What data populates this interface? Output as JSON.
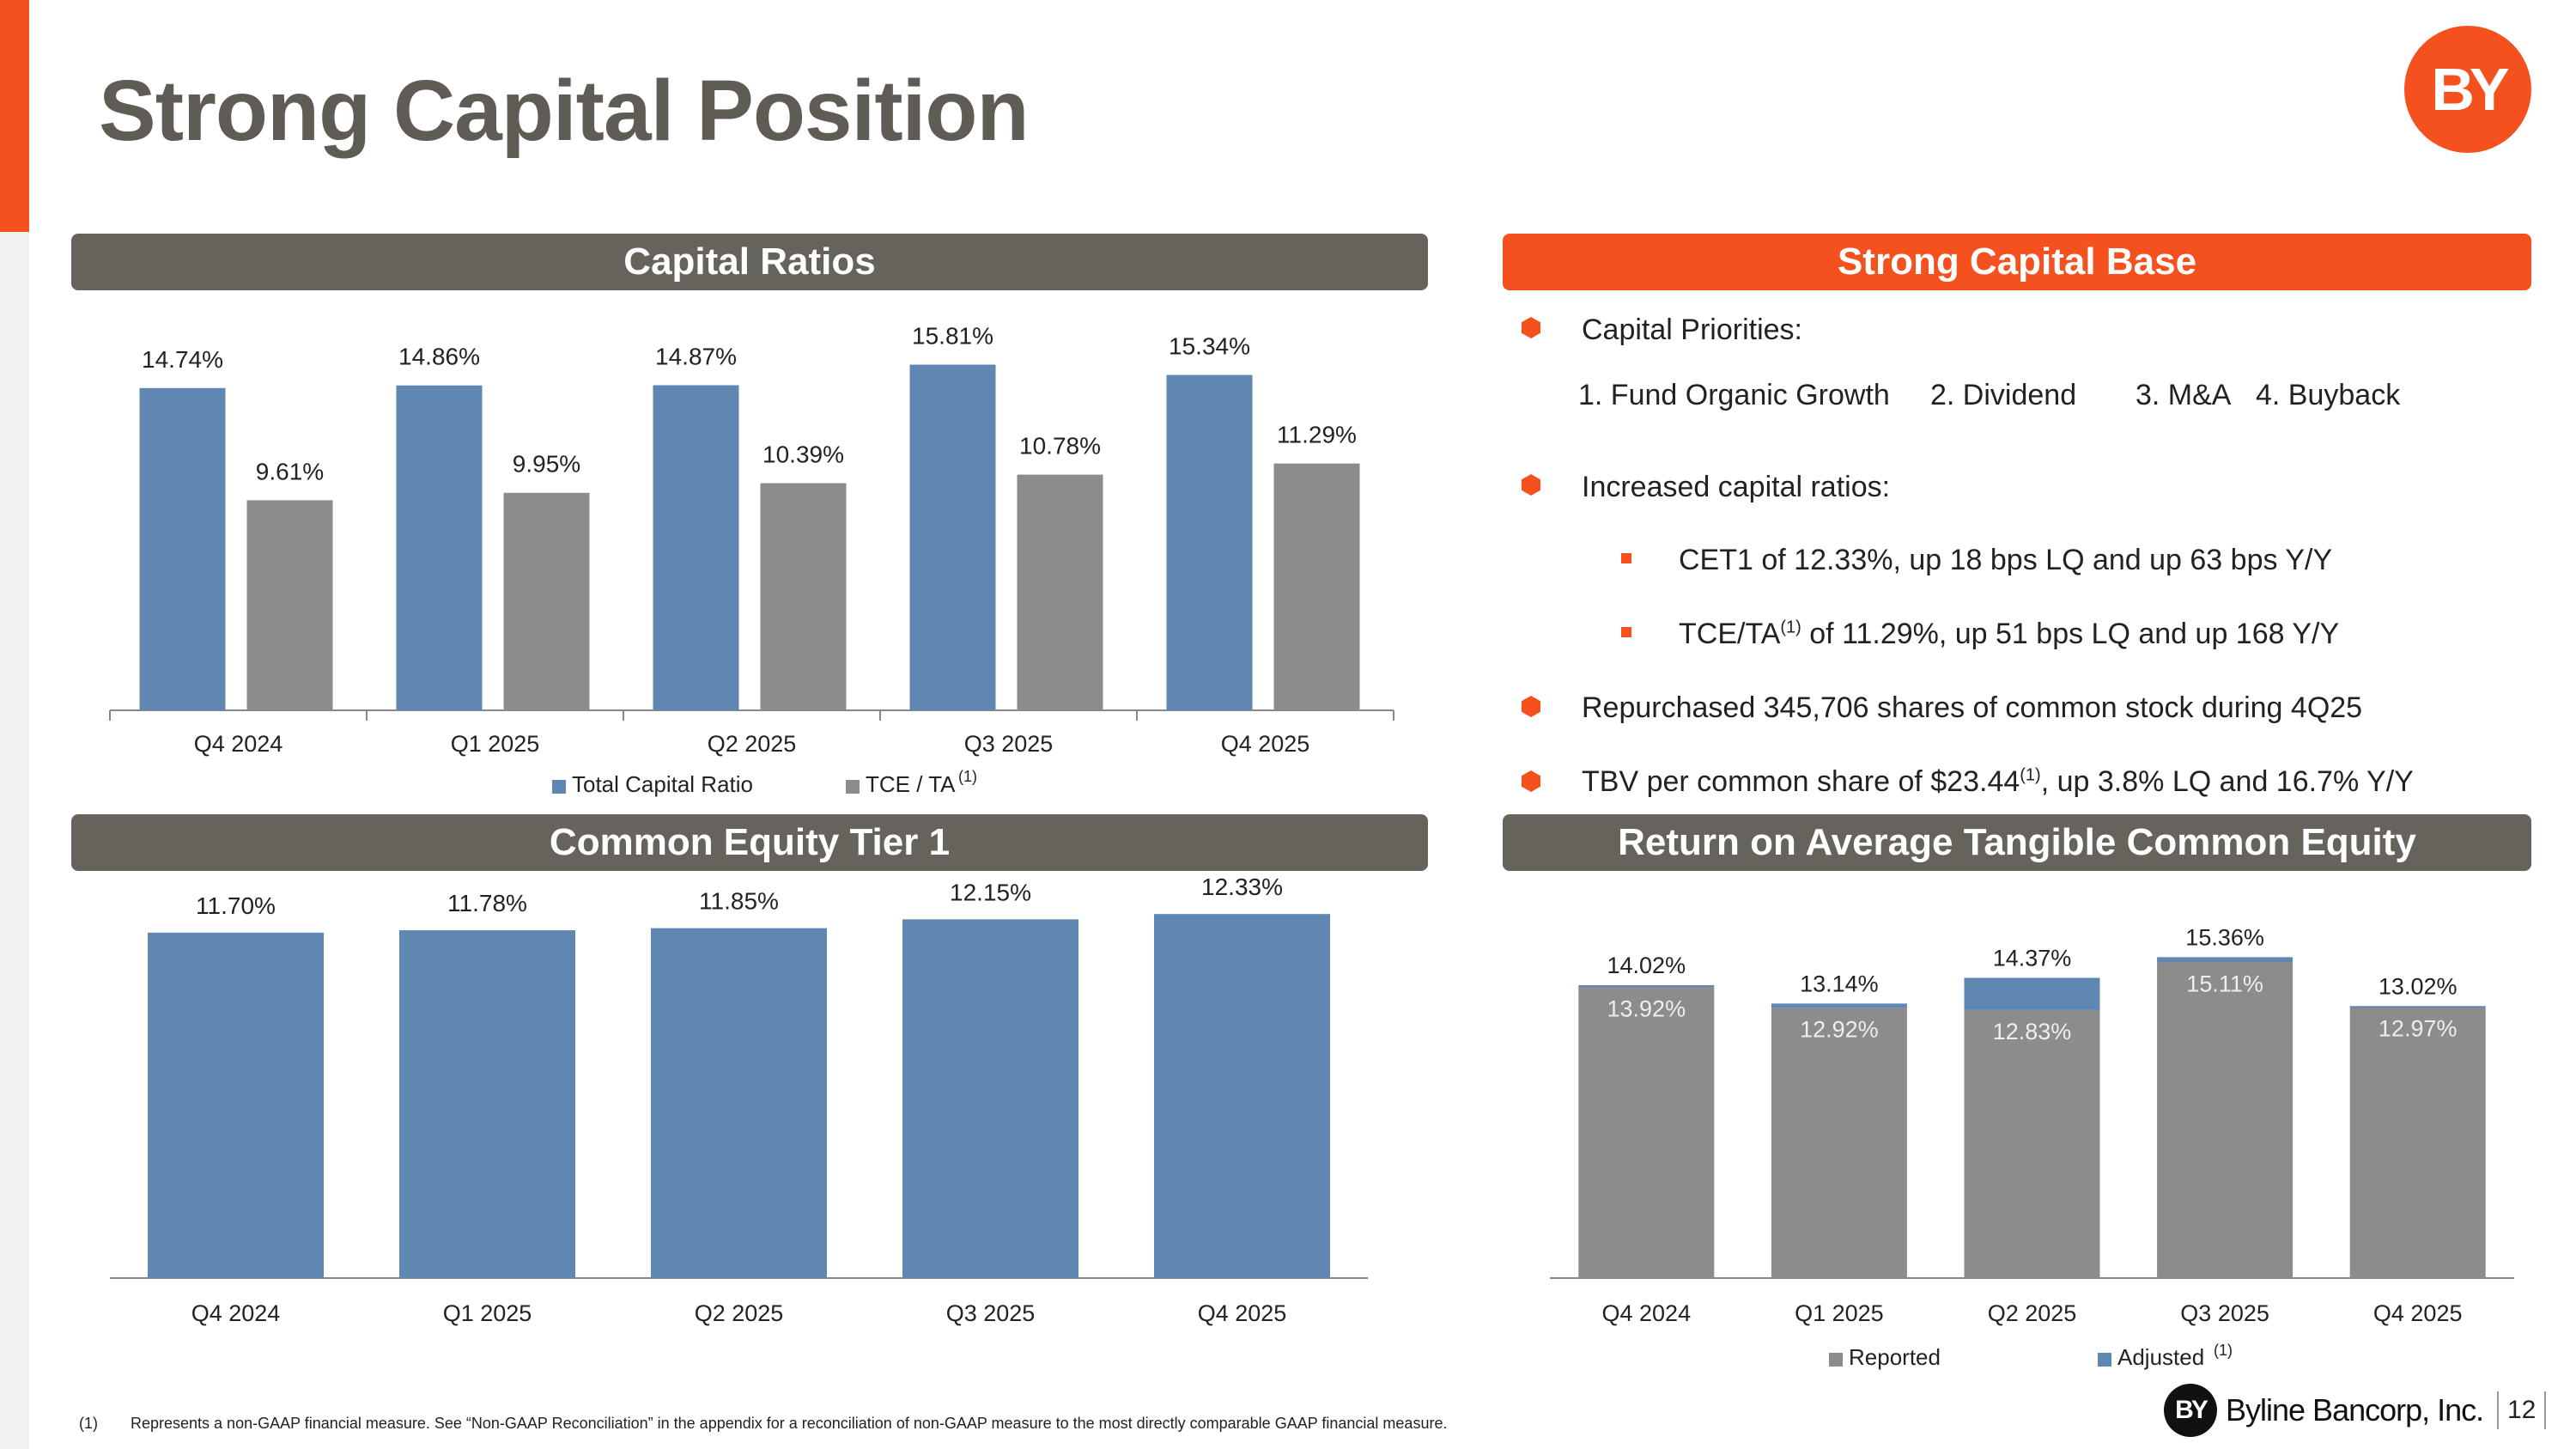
{
  "title": "Strong Capital Position",
  "colors": {
    "accent": "#f4511e",
    "blue": "#5f87b2",
    "gray_bar": "#8c8c8c",
    "header_gray": "#66625c"
  },
  "sections": {
    "capital_ratios": "Capital Ratios",
    "strong_capital_base": "Strong Capital Base",
    "cet1": "Common Equity Tier 1",
    "rotce": "Return on Average Tangible Common Equity"
  },
  "bullets": {
    "priorities_title": "Capital Priorities:",
    "priorities": [
      "1. Fund Organic Growth",
      "2. Dividend",
      "3. M&A",
      "4. Buyback"
    ],
    "increased": "Increased capital ratios:",
    "cet1_item": "CET1 of 12.33%, up 18 bps LQ and up 63 bps Y/Y",
    "tce_pre": "TCE/TA",
    "tce_sup": "(1)",
    "tce_post": " of 11.29%, up 51 bps LQ and up 168 Y/Y",
    "repurchased": "Repurchased 345,706 shares of common stock during 4Q25",
    "tbv_pre": "TBV per common share of $23.44",
    "tbv_sup": "(1)",
    "tbv_post": ", up 3.8% LQ and 16.7% Y/Y"
  },
  "footnote": {
    "num": "(1)",
    "text": "Represents a non-GAAP financial measure.  See “Non-GAAP Reconciliation” in the appendix for a reconciliation of non-GAAP measure to the most directly comparable GAAP financial measure."
  },
  "brand": {
    "logo_text": "BY",
    "name": "Byline Bancorp, Inc.",
    "page": "12"
  },
  "chart_data": [
    {
      "type": "bar",
      "title": "Capital Ratios",
      "categories": [
        "Q4 2024",
        "Q1 2025",
        "Q2 2025",
        "Q3 2025",
        "Q4 2025"
      ],
      "series": [
        {
          "name": "Total Capital Ratio",
          "values": [
            14.74,
            14.86,
            14.87,
            15.81,
            15.34
          ],
          "labels": [
            "14.74%",
            "14.86%",
            "14.87%",
            "15.81%",
            "15.34%"
          ]
        },
        {
          "name": "TCE / TA",
          "superscript": "(1)",
          "values": [
            9.61,
            9.95,
            10.39,
            10.78,
            11.29
          ],
          "labels": [
            "9.61%",
            "9.95%",
            "10.39%",
            "10.78%",
            "11.29%"
          ]
        }
      ],
      "ylim": [
        0,
        16.5
      ],
      "legend": "bottom"
    },
    {
      "type": "bar",
      "title": "Common Equity Tier 1",
      "categories": [
        "Q4 2024",
        "Q1 2025",
        "Q2 2025",
        "Q3 2025",
        "Q4 2025"
      ],
      "values": [
        11.7,
        11.78,
        11.85,
        12.15,
        12.33
      ],
      "labels": [
        "11.70%",
        "11.78%",
        "11.85%",
        "12.15%",
        "12.33%"
      ],
      "ylim": [
        0,
        12.8
      ]
    },
    {
      "type": "bar",
      "stacked": true,
      "title": "Return on Average Tangible Common Equity",
      "categories": [
        "Q4 2024",
        "Q1 2025",
        "Q2 2025",
        "Q3 2025",
        "Q4 2025"
      ],
      "reported": [
        13.92,
        12.92,
        12.83,
        15.11,
        12.97
      ],
      "reported_labels": [
        "13.92%",
        "12.92%",
        "12.83%",
        "15.11%",
        "12.97%"
      ],
      "adjusted": [
        14.02,
        13.14,
        14.37,
        15.36,
        13.02
      ],
      "adjusted_labels": [
        "14.02%",
        "13.14%",
        "14.37%",
        "15.36%",
        "13.02%"
      ],
      "legend_reported": "Reported",
      "legend_adjusted": "Adjusted",
      "legend_adjusted_sup": "(1)",
      "ylim": [
        0,
        18.5
      ],
      "legend": "bottom"
    }
  ]
}
